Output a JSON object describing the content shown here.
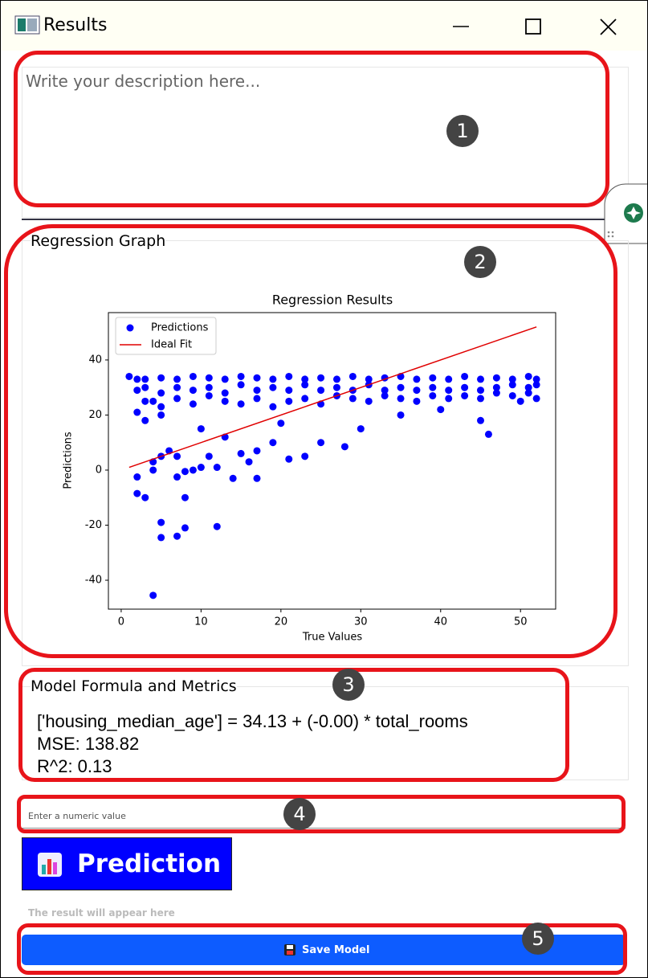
{
  "window": {
    "title": "Results"
  },
  "description": {
    "placeholder": "Write your description here..."
  },
  "graph_section": {
    "title": "Regression Graph"
  },
  "chart_data": {
    "type": "scatter",
    "title": "Regression Results",
    "xlabel": "True Values",
    "ylabel": "Predictions",
    "xlim": [
      -1.6,
      54.4
    ],
    "ylim": [
      -50.5,
      57.2
    ],
    "xticks": [
      0,
      10,
      20,
      30,
      40,
      50
    ],
    "yticks": [
      -40,
      -20,
      0,
      20,
      40
    ],
    "grid": false,
    "legend": "upper left",
    "series": [
      {
        "name": "Predictions",
        "color": "#0000ff",
        "kind": "points",
        "x": [
          1,
          2,
          2,
          2,
          3,
          3,
          3,
          5,
          5,
          5,
          7,
          7,
          7,
          9,
          9,
          9,
          11,
          11,
          11,
          13,
          13,
          13,
          15,
          15,
          15,
          17,
          17,
          17,
          19,
          19,
          19,
          21,
          21,
          21,
          23,
          23,
          23,
          25,
          25,
          25,
          27,
          27,
          27,
          29,
          29,
          29,
          31,
          31,
          31,
          33,
          33,
          33,
          35,
          35,
          35,
          37,
          37,
          37,
          39,
          39,
          39,
          41,
          41,
          41,
          43,
          43,
          43,
          45,
          45,
          45,
          47,
          47,
          47,
          49,
          49,
          49,
          51,
          51,
          51,
          52,
          52,
          52,
          2,
          3,
          5,
          5,
          7,
          8,
          12,
          4,
          2,
          4,
          4,
          5,
          6,
          7,
          8,
          8,
          7,
          9,
          10,
          11,
          12,
          14,
          17,
          15,
          16,
          17,
          19,
          21,
          23,
          28,
          25,
          46,
          45,
          3,
          5,
          4,
          10,
          13,
          20,
          30,
          35,
          40,
          50
        ],
        "values": [
          34,
          33,
          29,
          21,
          33,
          30,
          25,
          33.5,
          28,
          23,
          33,
          30,
          26,
          34,
          29,
          24,
          33.5,
          30,
          27,
          33,
          28,
          25,
          34,
          31,
          24,
          33.5,
          29,
          26,
          33,
          30,
          23,
          34,
          29,
          25,
          33,
          31,
          26,
          33.5,
          29,
          24,
          33,
          30,
          27,
          34,
          29,
          26,
          33,
          31,
          25,
          33.5,
          29,
          27,
          34,
          30,
          26,
          33,
          29,
          25,
          33.5,
          30,
          27,
          33,
          29,
          26,
          34,
          30,
          27,
          33,
          29,
          26,
          33.5,
          30,
          28,
          33,
          31,
          27,
          34,
          30,
          28,
          33,
          31,
          26,
          -8.5,
          -10,
          -19,
          -24.5,
          -24,
          -21,
          -20.5,
          -45.5,
          -2.5,
          0,
          3,
          5,
          7,
          -2.5,
          -10,
          -0.5,
          5,
          0,
          1,
          5,
          1,
          -3,
          -3,
          6,
          3,
          7,
          10,
          4,
          5,
          8.5,
          10,
          13,
          18,
          18,
          20,
          25,
          15,
          12,
          17,
          15,
          20,
          22,
          25
        ]
      },
      {
        "name": "Ideal Fit",
        "color": "#e00000",
        "kind": "line",
        "x": [
          1,
          52
        ],
        "values": [
          1,
          52
        ]
      }
    ]
  },
  "metrics": {
    "title": "Model Formula and Metrics",
    "lines": [
      "['housing_median_age'] = 34.13 + (-0.00) * total_rooms",
      "MSE: 138.82",
      "R^2: 0.13"
    ]
  },
  "input": {
    "placeholder": "Enter a numeric value"
  },
  "prediction_button": {
    "label": "Prediction"
  },
  "result": {
    "placeholder": "The result will appear here"
  },
  "save_button": {
    "label": "Save Model"
  },
  "annotations": [
    1,
    2,
    3,
    4,
    5
  ]
}
